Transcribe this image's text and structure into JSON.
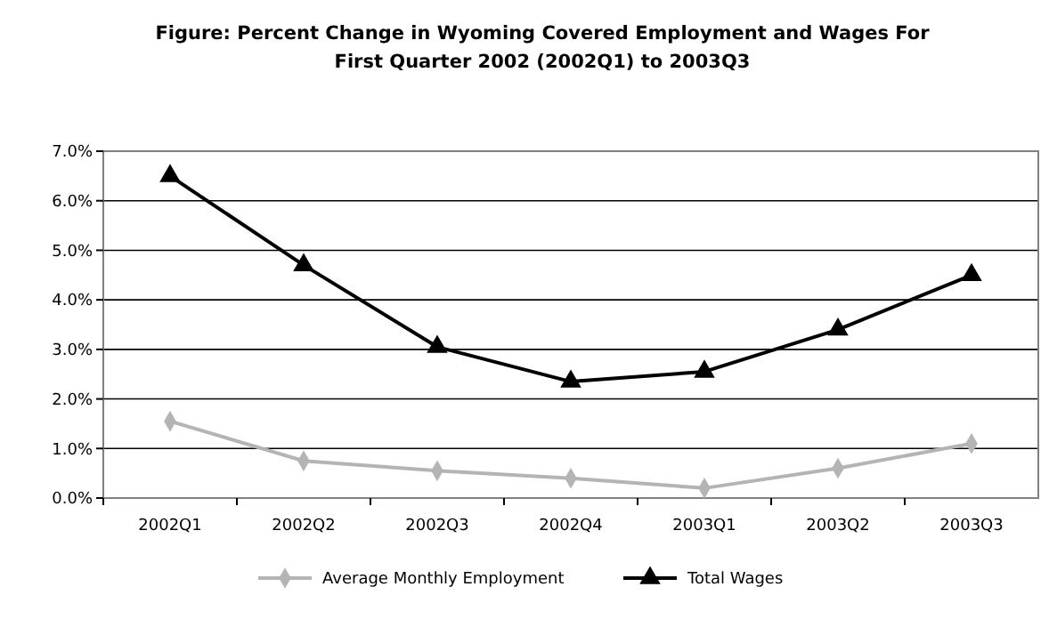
{
  "chart_data": {
    "type": "line",
    "title": "Figure: Percent Change in Wyoming Covered Employment and Wages For First Quarter 2002 (2002Q1) to 2003Q3",
    "categories": [
      "2002Q1",
      "2002Q2",
      "2002Q3",
      "2002Q4",
      "2003Q1",
      "2003Q2",
      "2003Q3"
    ],
    "series": [
      {
        "name": "Average Monthly Employment",
        "color": "#b4b4b4",
        "marker": "diamond",
        "values": [
          1.55,
          0.75,
          0.55,
          0.4,
          0.2,
          0.6,
          1.1
        ]
      },
      {
        "name": "Total Wages",
        "color": "#000000",
        "marker": "triangle",
        "values": [
          6.5,
          4.7,
          3.05,
          2.35,
          2.55,
          3.4,
          4.5
        ]
      }
    ],
    "ylim": [
      0,
      7
    ],
    "yticks": [
      {
        "value": 0,
        "label": "0.0%"
      },
      {
        "value": 1,
        "label": "1.0%"
      },
      {
        "value": 2,
        "label": "2.0%"
      },
      {
        "value": 3,
        "label": "3.0%"
      },
      {
        "value": 4,
        "label": "4.0%"
      },
      {
        "value": 5,
        "label": "5.0%"
      },
      {
        "value": 6,
        "label": "6.0%"
      },
      {
        "value": 7,
        "label": "7.0%"
      }
    ],
    "grid": "y",
    "legend": "bottom"
  }
}
